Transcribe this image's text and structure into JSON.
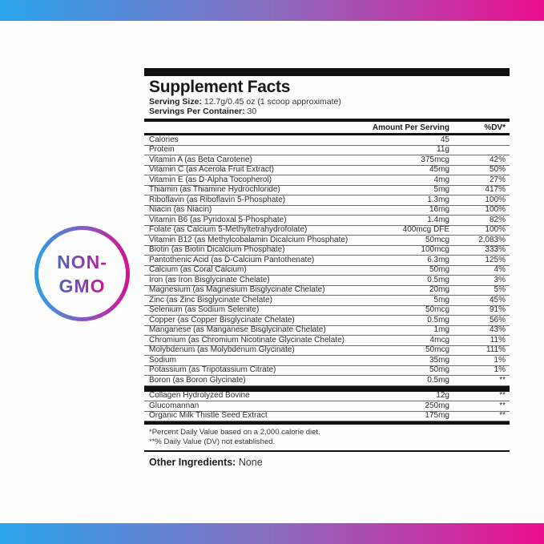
{
  "colors": {
    "gradient_start": "#29a4ec",
    "gradient_end": "#ec0e90",
    "panel_black": "#111111"
  },
  "badge": {
    "line1": "NON-",
    "line2": "GMO"
  },
  "panel": {
    "title": "Supplement Facts",
    "serving_size_label": "Serving Size:",
    "serving_size_value": " 12.7g/0.45 oz (1 scoop approximate)",
    "servings_label": "Servings Per Container:",
    "servings_value": " 30",
    "col_amount": "Amount Per Serving",
    "col_dv": "%DV*",
    "rows": [
      {
        "name": "Calories",
        "amount": "45",
        "dv": ""
      },
      {
        "name": "Protein",
        "amount": "11g",
        "dv": ""
      },
      {
        "name": "Vitamin A (as Beta Carotene)",
        "amount": "375mcg",
        "dv": "42%"
      },
      {
        "name": "Vitamin C (as Acerola Fruit Extract)",
        "amount": "45mg",
        "dv": "50%"
      },
      {
        "name": "Vitamin E (as D-Alpha Tocopherol)",
        "amount": "4mg",
        "dv": "27%"
      },
      {
        "name": "Thiamin (as Thiamine Hydrochloride)",
        "amount": "5mg",
        "dv": "417%"
      },
      {
        "name": "Riboflavin (as Riboflavin 5-Phosphate)",
        "amount": "1.3mg",
        "dv": "100%"
      },
      {
        "name": "Niacin (as Niacin)",
        "amount": "16mg",
        "dv": "100%"
      },
      {
        "name": "Vitamin B6 (as Pyridoxal 5-Phosphate)",
        "amount": "1.4mg",
        "dv": "82%"
      },
      {
        "name": "Folate (as Calcium 5-Methyltetrahydrofolate)",
        "amount": "400mcg DFE",
        "dv": "100%"
      },
      {
        "name": "Vitamin B12 (as Methylcobalamin Dicalcium Phosphate)",
        "amount": "50mcg",
        "dv": "2,083%"
      },
      {
        "name": "Biotin (as Biotin Dicalcium Phosphate)",
        "amount": "100mcg",
        "dv": "333%"
      },
      {
        "name": "Pantothenic Acid (as D-Calcium Pantothenate)",
        "amount": "6.3mg",
        "dv": "125%"
      },
      {
        "name": "Calcium (as Coral Calcium)",
        "amount": "50mg",
        "dv": "4%"
      },
      {
        "name": "Iron (as Iron Bisglycinate Chelate)",
        "amount": "0.5mg",
        "dv": "3%"
      },
      {
        "name": "Magnesium (as Magnesium Bisglycinate Chelate)",
        "amount": "20mg",
        "dv": "5%"
      },
      {
        "name": "Zinc (as Zinc Bisglycinate Chelate)",
        "amount": "5mg",
        "dv": "45%"
      },
      {
        "name": "Selenium (as Sodium Selenite)",
        "amount": "50mcg",
        "dv": "91%"
      },
      {
        "name": "Copper (as Copper Bisglycinate Chelate)",
        "amount": "0.5mg",
        "dv": "56%"
      },
      {
        "name": "Manganese (as Manganese Bisglycinate Chelate)",
        "amount": "1mg",
        "dv": "43%"
      },
      {
        "name": "Chromium (as Chromium Nicotinate Glycinate Chelate)",
        "amount": "4mcg",
        "dv": "11%"
      },
      {
        "name": "Molybdenum (as Molybdenum Glycinate)",
        "amount": "50mcg",
        "dv": "111%"
      },
      {
        "name": "Sodium",
        "amount": "35mg",
        "dv": "1%"
      },
      {
        "name": "Potassium (as Tripotassium Citrate)",
        "amount": "50mg",
        "dv": "1%"
      },
      {
        "name": "Boron (as Boron Glycinate)",
        "amount": "0.5mg",
        "dv": "**"
      }
    ],
    "extra_rows": [
      {
        "name": "Collagen Hydrolyzed Bovine",
        "amount": "12g",
        "dv": "**"
      },
      {
        "name": "Glucomannan",
        "amount": "250mg",
        "dv": "**"
      },
      {
        "name": "Organic Milk Thistle Seed Extract",
        "amount": "175mg",
        "dv": "**"
      }
    ],
    "footnote1": "*Percent Daily Value based on a 2,000 calorie diet.",
    "footnote2": "**% Daily Value (DV) not established.",
    "other_label": "Other Ingredients:",
    "other_value": " None"
  }
}
